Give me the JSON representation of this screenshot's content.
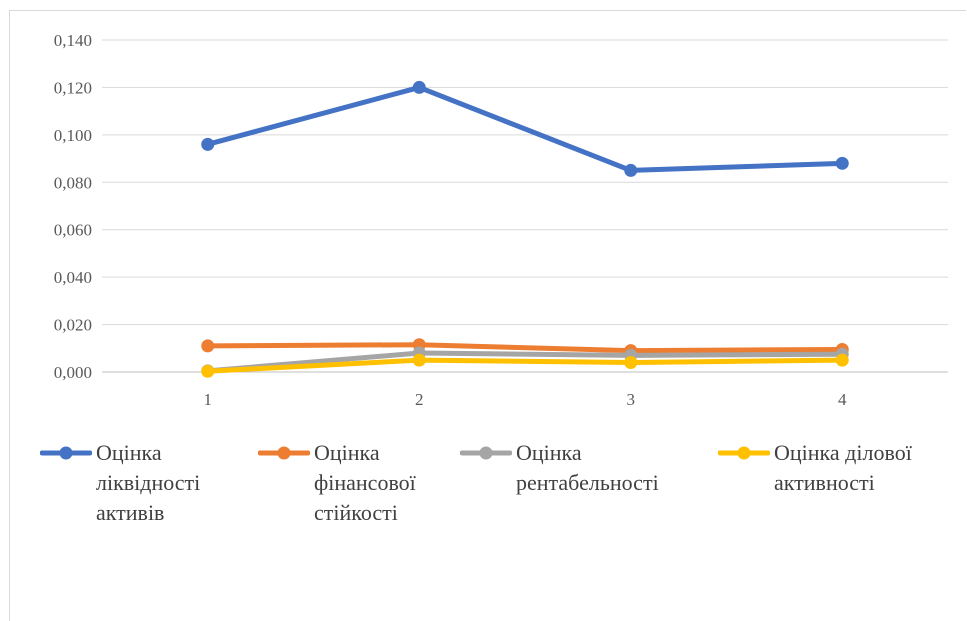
{
  "chart_data": {
    "type": "line",
    "title": "",
    "xlabel": "",
    "ylabel": "",
    "categories": [
      "1",
      "2",
      "3",
      "4"
    ],
    "ylim": [
      0,
      0.14
    ],
    "yticks": [
      "0,000",
      "0,020",
      "0,040",
      "0,060",
      "0,080",
      "0,100",
      "0,120",
      "0,140"
    ],
    "grid": true,
    "legend_position": "bottom",
    "series": [
      {
        "name": "Оцінка ліквідності активів",
        "label_lines": "Оцінка\nліквідності\nактивів",
        "color": "#4472c4",
        "values": [
          0.096,
          0.12,
          0.085,
          0.088
        ]
      },
      {
        "name": "Оцінка фінансової стійкості",
        "label_lines": "Оцінка\nфінансової\nстійкості",
        "color": "#ed7d31",
        "values": [
          0.011,
          0.0115,
          0.009,
          0.0095
        ]
      },
      {
        "name": "Оцінка рентабельності",
        "label_lines": "Оцінка\nрентабельності",
        "color": "#a5a5a5",
        "values": [
          0.0005,
          0.008,
          0.007,
          0.0075
        ]
      },
      {
        "name": "Оцінка ділової активності",
        "label_lines": "Оцінка ділової\nактивності",
        "color": "#ffc000",
        "values": [
          0.0003,
          0.005,
          0.004,
          0.005
        ]
      }
    ]
  }
}
